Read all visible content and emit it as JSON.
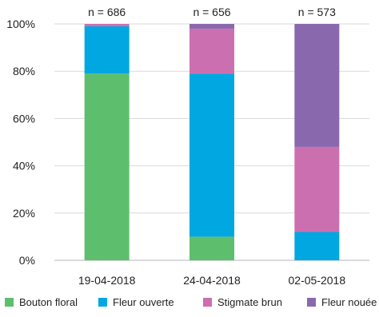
{
  "chart_data": {
    "type": "bar",
    "stacked": true,
    "categories": [
      "19-04-2018",
      "24-04-2018",
      "02-05-2018"
    ],
    "annotations": [
      "n = 686",
      "n = 656",
      "n = 573"
    ],
    "series": [
      {
        "name": "Bouton floral",
        "color": "#5dbf6e",
        "values": [
          79,
          10,
          0
        ]
      },
      {
        "name": "Fleur ouverte",
        "color": "#00a7e1",
        "values": [
          20,
          69,
          12
        ]
      },
      {
        "name": "Stigmate brun",
        "color": "#cc6fb0",
        "values": [
          1,
          19,
          36
        ]
      },
      {
        "name": "Fleur nouée",
        "color": "#8a68ad",
        "values": [
          0,
          2,
          52
        ]
      }
    ],
    "yticks": [
      "0%",
      "20%",
      "40%",
      "60%",
      "80%",
      "100%"
    ],
    "ylim": [
      0,
      100
    ],
    "grid": true,
    "legend": "bottom"
  }
}
